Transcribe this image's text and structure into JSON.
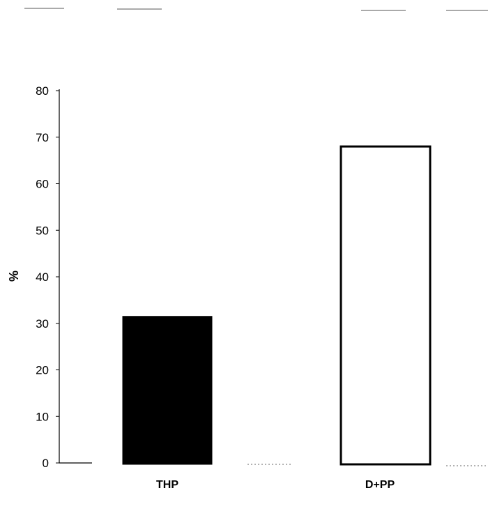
{
  "chart_data": {
    "type": "bar",
    "categories": [
      "THP",
      "D+PP"
    ],
    "values": [
      31.5,
      68
    ],
    "bar_fills": [
      "#000000",
      "#ffffff"
    ],
    "ylabel": "%",
    "ylim": [
      0,
      80
    ],
    "yticks": [
      0,
      10,
      20,
      30,
      40,
      50,
      60,
      70,
      80
    ],
    "grid": false
  }
}
